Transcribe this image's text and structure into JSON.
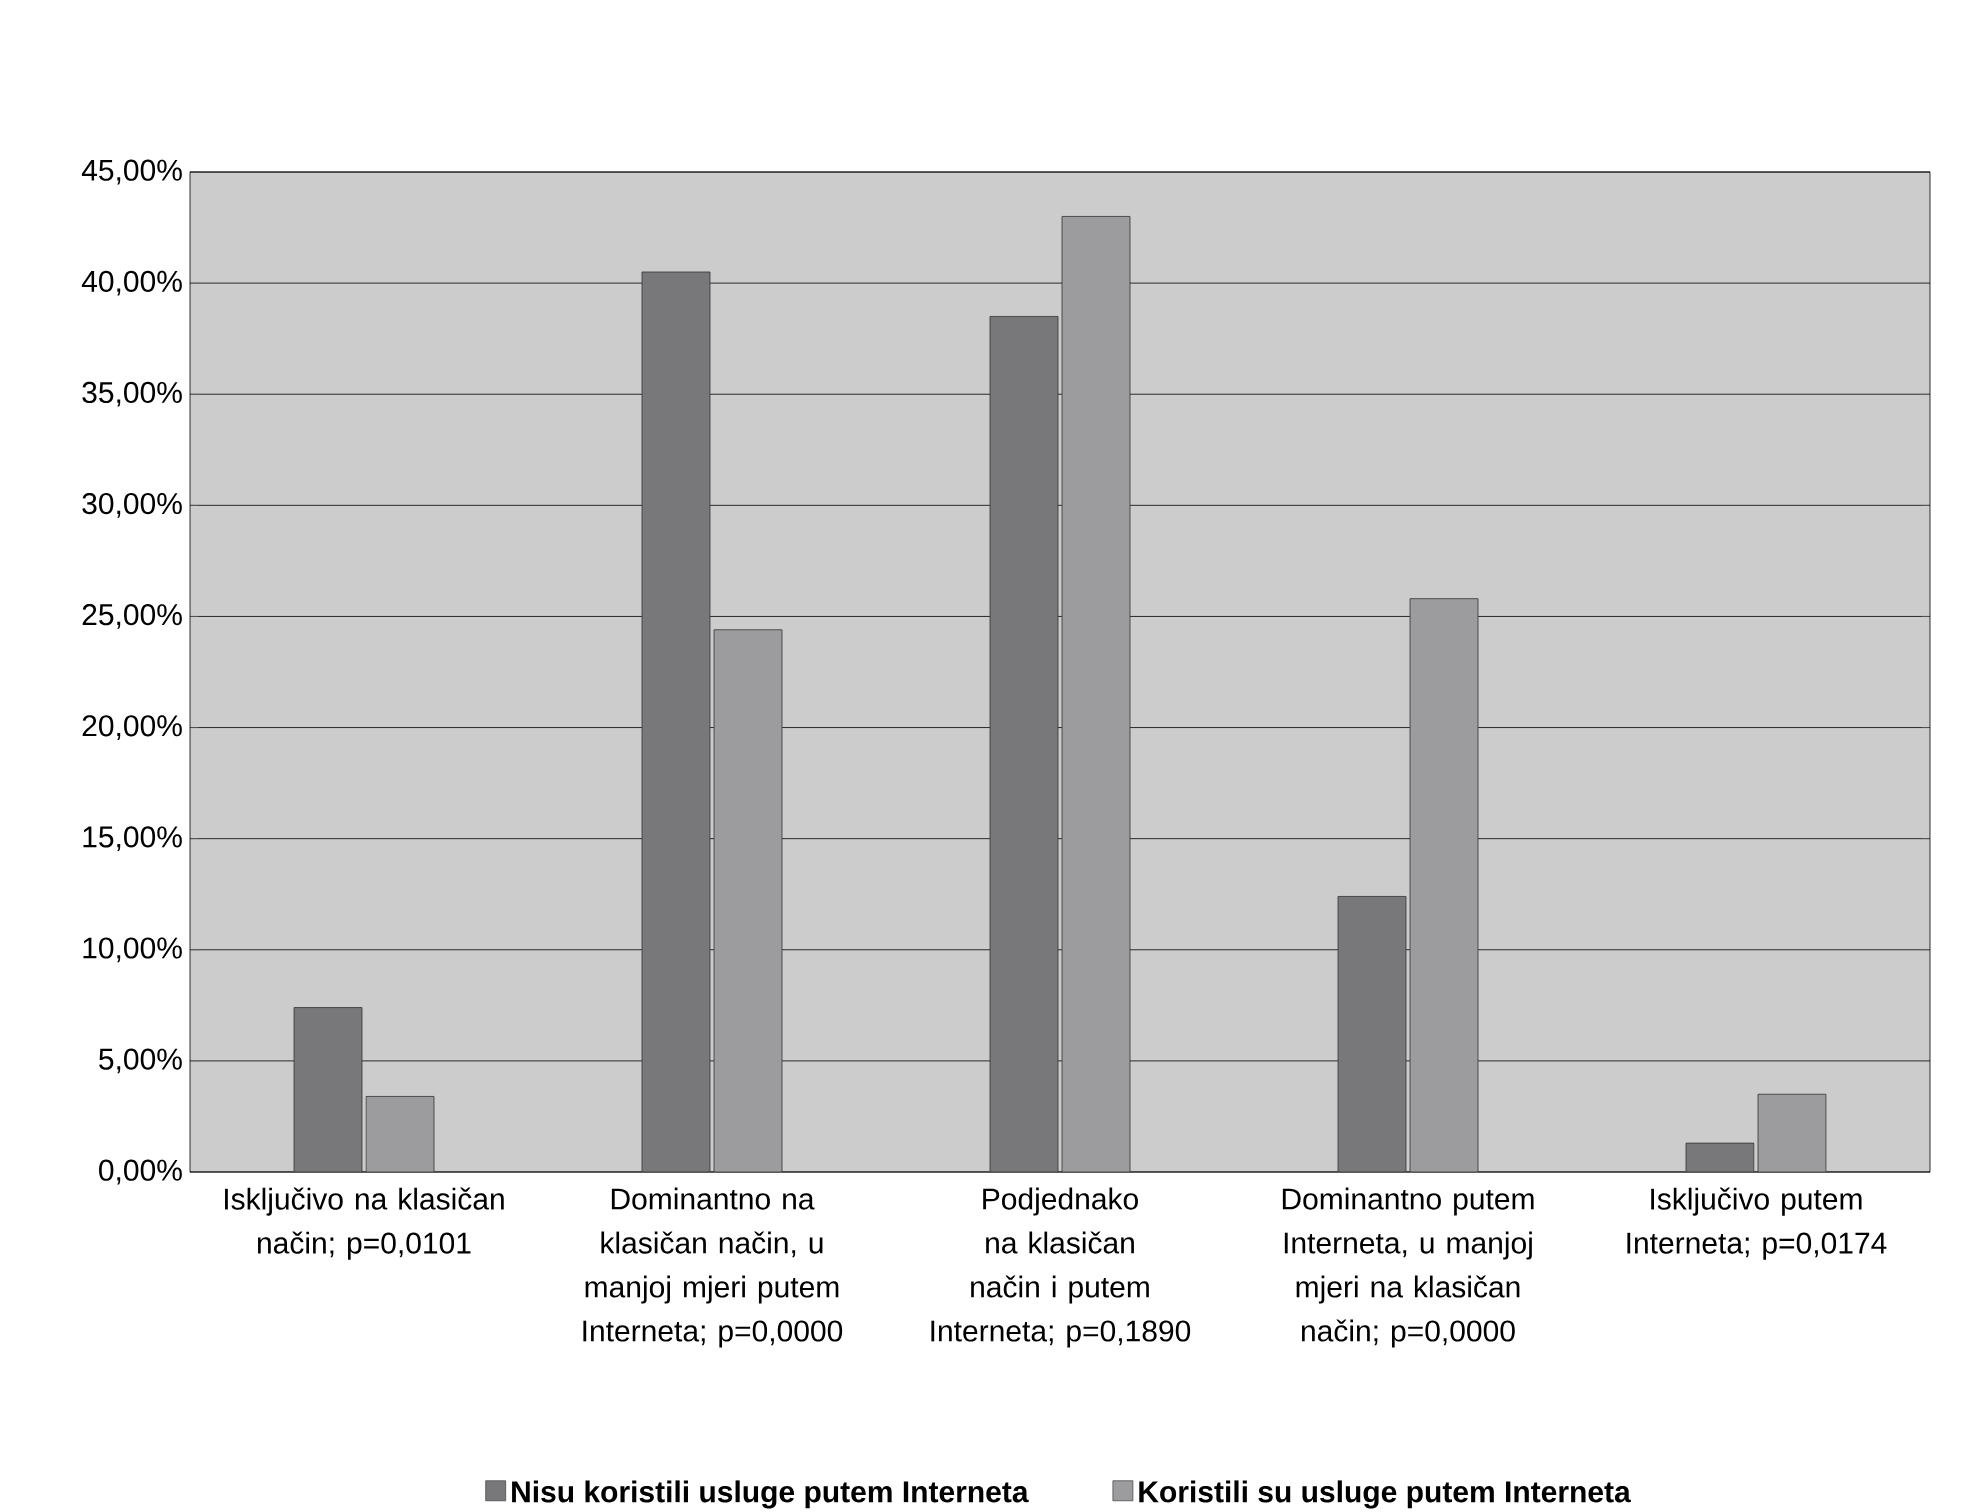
{
  "chart_data": {
    "type": "bar",
    "categories": [
      "Isključivo na klasičan način; p=0,0101",
      "Dominantno na klasičan način, u manjoj mjeri putem Interneta; p=0,0000",
      "Podjednako na klasičan način i putem Interneta; p=0,1890",
      "Dominantno putem Interneta, u manjoj mjeri na klasičan način; p=0,0000",
      "Isključivo putem Interneta; p=0,0174"
    ],
    "series": [
      {
        "name": "Nisu koristili usluge putem Interneta",
        "color": "#78787a",
        "values": [
          7.4,
          40.5,
          38.5,
          12.4,
          1.3
        ]
      },
      {
        "name": "Koristili su usluge putem Interneta",
        "color": "#9c9c9e",
        "values": [
          3.4,
          24.4,
          43.0,
          25.8,
          3.5
        ]
      }
    ],
    "ylim": [
      0,
      45
    ],
    "yticks": [
      {
        "value": 0,
        "label": "0,00%"
      },
      {
        "value": 5,
        "label": "5,00%"
      },
      {
        "value": 10,
        "label": "10,00%"
      },
      {
        "value": 15,
        "label": "15,00%"
      },
      {
        "value": 20,
        "label": "20,00%"
      },
      {
        "value": 25,
        "label": "25,00%"
      },
      {
        "value": 30,
        "label": "30,00%"
      },
      {
        "value": 35,
        "label": "35,00%"
      },
      {
        "value": 40,
        "label": "40,00%"
      },
      {
        "value": 45,
        "label": "45,00%"
      }
    ],
    "grid": "y",
    "legend": "bottom"
  }
}
